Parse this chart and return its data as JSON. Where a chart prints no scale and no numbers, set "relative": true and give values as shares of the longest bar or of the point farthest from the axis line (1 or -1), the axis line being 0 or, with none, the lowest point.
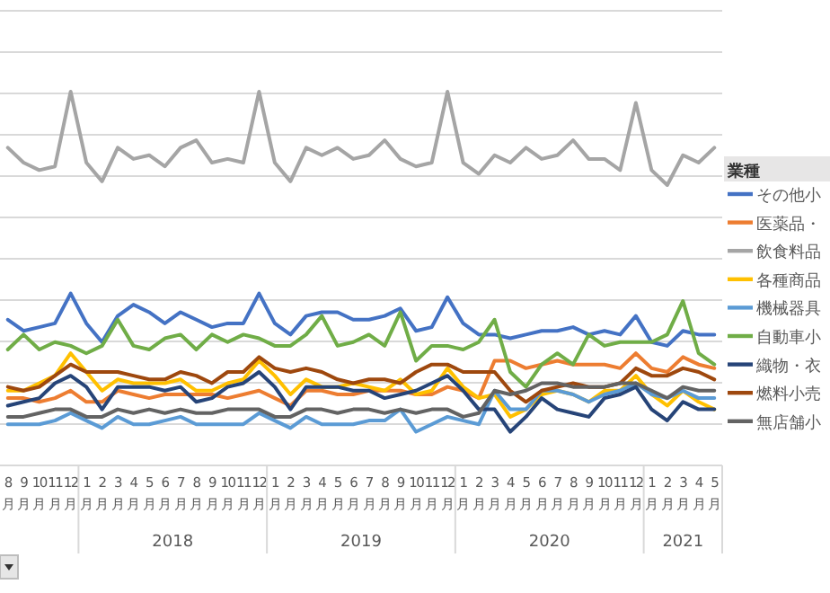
{
  "chart_data": {
    "type": "line",
    "relative": true,
    "grid": "y",
    "legend": "right",
    "legend_title": "業種",
    "categories": [
      "8月",
      "9月",
      "10月",
      "11月",
      "12月",
      "1月",
      "2月",
      "3月",
      "4月",
      "5月",
      "6月",
      "7月",
      "8月",
      "9月",
      "10月",
      "11月",
      "12月",
      "1月",
      "2月",
      "3月",
      "4月",
      "5月",
      "6月",
      "7月",
      "8月",
      "9月",
      "10月",
      "11月",
      "12月",
      "1月",
      "2月",
      "3月",
      "4月",
      "5月",
      "6月",
      "7月",
      "8月",
      "9月",
      "10月",
      "11月",
      "12月",
      "1月",
      "2月",
      "3月",
      "4月",
      "5月"
    ],
    "annotations": [
      "2018",
      "2019",
      "2020",
      "2021"
    ],
    "series": [
      {
        "name": "その他小",
        "color": "#4472c4",
        "values": [
          0.39,
          0.36,
          0.37,
          0.38,
          0.46,
          0.38,
          0.33,
          0.4,
          0.43,
          0.41,
          0.38,
          0.41,
          0.39,
          0.37,
          0.38,
          0.38,
          0.46,
          0.38,
          0.35,
          0.4,
          0.41,
          0.41,
          0.39,
          0.39,
          0.4,
          0.42,
          0.36,
          0.37,
          0.45,
          0.38,
          0.35,
          0.35,
          0.34,
          0.35,
          0.36,
          0.36,
          0.37,
          0.35,
          0.36,
          0.35,
          0.4,
          0.33,
          0.32,
          0.36,
          0.35,
          0.35
        ]
      },
      {
        "name": "医薬品・",
        "color": "#ed7d31",
        "values": [
          0.18,
          0.18,
          0.17,
          0.18,
          0.2,
          0.17,
          0.17,
          0.2,
          0.19,
          0.18,
          0.19,
          0.19,
          0.19,
          0.19,
          0.18,
          0.19,
          0.2,
          0.18,
          0.16,
          0.2,
          0.2,
          0.19,
          0.19,
          0.2,
          0.2,
          0.2,
          0.19,
          0.19,
          0.21,
          0.2,
          0.18,
          0.28,
          0.28,
          0.26,
          0.27,
          0.28,
          0.27,
          0.27,
          0.27,
          0.26,
          0.3,
          0.26,
          0.25,
          0.29,
          0.27,
          0.26
        ]
      },
      {
        "name": "飲食料品",
        "color": "#a5a5a5",
        "values": [
          0.85,
          0.81,
          0.79,
          0.8,
          1.0,
          0.81,
          0.76,
          0.85,
          0.82,
          0.83,
          0.8,
          0.85,
          0.87,
          0.81,
          0.82,
          0.81,
          1.0,
          0.81,
          0.76,
          0.85,
          0.83,
          0.85,
          0.82,
          0.83,
          0.87,
          0.82,
          0.8,
          0.81,
          1.0,
          0.81,
          0.78,
          0.83,
          0.81,
          0.85,
          0.82,
          0.83,
          0.87,
          0.82,
          0.82,
          0.79,
          0.97,
          0.79,
          0.75,
          0.83,
          0.81,
          0.85
        ]
      },
      {
        "name": "各種商品",
        "color": "#ffc000",
        "values": [
          0.2,
          0.2,
          0.22,
          0.24,
          0.3,
          0.25,
          0.2,
          0.23,
          0.22,
          0.22,
          0.22,
          0.23,
          0.2,
          0.2,
          0.22,
          0.23,
          0.28,
          0.24,
          0.19,
          0.23,
          0.21,
          0.21,
          0.22,
          0.21,
          0.2,
          0.23,
          0.19,
          0.2,
          0.26,
          0.21,
          0.18,
          0.19,
          0.13,
          0.15,
          0.19,
          0.2,
          0.19,
          0.17,
          0.2,
          0.2,
          0.24,
          0.19,
          0.16,
          0.2,
          0.17,
          0.15
        ]
      },
      {
        "name": "機械器具",
        "color": "#5b9bd5",
        "values": [
          0.11,
          0.11,
          0.11,
          0.12,
          0.14,
          0.12,
          0.1,
          0.13,
          0.11,
          0.11,
          0.12,
          0.13,
          0.11,
          0.11,
          0.11,
          0.11,
          0.14,
          0.12,
          0.1,
          0.13,
          0.11,
          0.11,
          0.11,
          0.12,
          0.12,
          0.15,
          0.09,
          0.11,
          0.13,
          0.12,
          0.11,
          0.2,
          0.15,
          0.15,
          0.2,
          0.2,
          0.19,
          0.17,
          0.19,
          0.2,
          0.22,
          0.19,
          0.18,
          0.2,
          0.18,
          0.18
        ]
      },
      {
        "name": "自動車小",
        "color": "#70ad47",
        "values": [
          0.31,
          0.35,
          0.31,
          0.33,
          0.32,
          0.3,
          0.32,
          0.39,
          0.32,
          0.31,
          0.34,
          0.35,
          0.31,
          0.35,
          0.33,
          0.35,
          0.34,
          0.32,
          0.32,
          0.35,
          0.4,
          0.32,
          0.33,
          0.35,
          0.32,
          0.41,
          0.28,
          0.32,
          0.32,
          0.31,
          0.33,
          0.39,
          0.25,
          0.21,
          0.27,
          0.3,
          0.27,
          0.35,
          0.32,
          0.33,
          0.33,
          0.33,
          0.35,
          0.44,
          0.3,
          0.27
        ]
      },
      {
        "name": "織物・衣",
        "color": "#264478",
        "values": [
          0.16,
          0.17,
          0.18,
          0.22,
          0.24,
          0.21,
          0.15,
          0.21,
          0.21,
          0.21,
          0.2,
          0.21,
          0.17,
          0.18,
          0.21,
          0.22,
          0.25,
          0.21,
          0.15,
          0.21,
          0.21,
          0.21,
          0.2,
          0.2,
          0.18,
          0.19,
          0.2,
          0.22,
          0.24,
          0.2,
          0.15,
          0.15,
          0.09,
          0.13,
          0.18,
          0.15,
          0.14,
          0.13,
          0.18,
          0.19,
          0.21,
          0.15,
          0.12,
          0.17,
          0.15,
          0.15
        ]
      },
      {
        "name": "燃料小売",
        "color": "#9e480e",
        "values": [
          0.21,
          0.2,
          0.21,
          0.24,
          0.27,
          0.25,
          0.25,
          0.25,
          0.24,
          0.23,
          0.23,
          0.25,
          0.24,
          0.22,
          0.25,
          0.25,
          0.29,
          0.26,
          0.25,
          0.26,
          0.25,
          0.23,
          0.22,
          0.23,
          0.23,
          0.22,
          0.25,
          0.27,
          0.27,
          0.25,
          0.25,
          0.25,
          0.2,
          0.17,
          0.2,
          0.21,
          0.22,
          0.21,
          0.21,
          0.22,
          0.26,
          0.24,
          0.24,
          0.26,
          0.25,
          0.23
        ]
      },
      {
        "name": "無店舗小",
        "color": "#636363",
        "values": [
          0.13,
          0.13,
          0.14,
          0.15,
          0.15,
          0.13,
          0.13,
          0.15,
          0.14,
          0.15,
          0.14,
          0.15,
          0.14,
          0.14,
          0.15,
          0.15,
          0.15,
          0.13,
          0.13,
          0.15,
          0.15,
          0.14,
          0.15,
          0.15,
          0.14,
          0.15,
          0.14,
          0.15,
          0.15,
          0.13,
          0.14,
          0.2,
          0.19,
          0.2,
          0.22,
          0.22,
          0.21,
          0.21,
          0.21,
          0.22,
          0.22,
          0.2,
          0.18,
          0.21,
          0.2,
          0.2
        ]
      }
    ]
  }
}
